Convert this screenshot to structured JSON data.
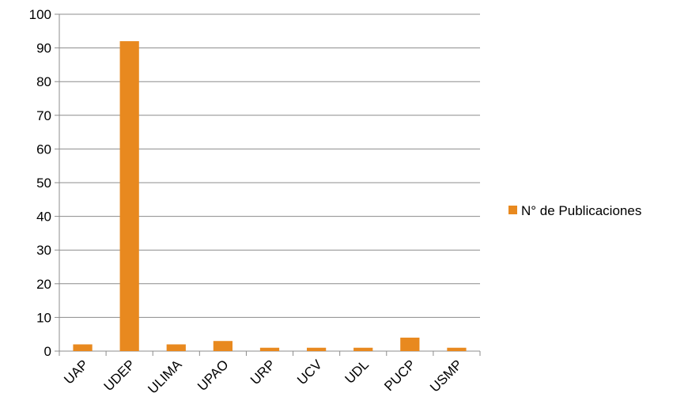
{
  "chart_data": {
    "type": "bar",
    "categories": [
      "UAP",
      "UDEP",
      "ULIMA",
      "UPAO",
      "URP",
      "UCV",
      "UDL",
      "PUCP",
      "USMP"
    ],
    "series": [
      {
        "name": "N° de Publicaciones",
        "values": [
          2,
          92,
          2,
          3,
          1,
          1,
          1,
          4,
          1
        ],
        "color": "#E8891F"
      }
    ],
    "ylim": [
      0,
      100
    ],
    "yticks": [
      0,
      10,
      20,
      30,
      40,
      50,
      60,
      70,
      80,
      90,
      100
    ],
    "grid": true,
    "legend_position": "right"
  }
}
